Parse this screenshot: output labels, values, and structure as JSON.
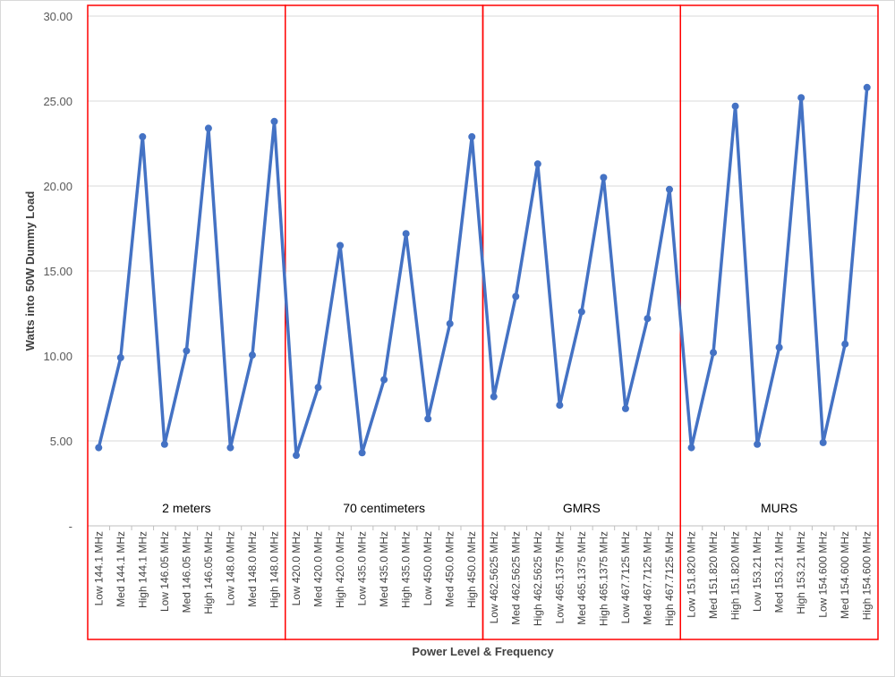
{
  "chart_data": {
    "type": "line",
    "title": "",
    "xlabel": "Power Level & Frequency",
    "ylabel": "Watts into 50W Dummy Load",
    "ylim": [
      0,
      30
    ],
    "yticks": [
      "-",
      "5.00",
      "10.00",
      "15.00",
      "20.00",
      "25.00",
      "30.00"
    ],
    "grid": true,
    "line_color": "#4472C4",
    "group_box_color": "#FF0000",
    "groups": [
      {
        "label": "2 meters",
        "count": 9
      },
      {
        "label": "70 centimeters",
        "count": 9
      },
      {
        "label": "GMRS",
        "count": 9
      },
      {
        "label": "MURS",
        "count": 9
      }
    ],
    "categories": [
      "Low 144.1 MHz",
      "Med 144.1 MHz",
      "High 144.1 MHz",
      "Low 146.05 MHz",
      "Med 146.05 MHz",
      "High 146.05 MHz",
      "Low 148.0 MHz",
      "Med 148.0 MHz",
      "High 148.0 MHz",
      "Low 420.0 MHz",
      "Med 420.0 MHz",
      "High 420.0 MHz",
      "Low 435.0 MHz",
      "Med 435.0 MHz",
      "High 435.0 MHz",
      "Low 450.0 MHz",
      "Med 450.0 MHz",
      "High 450.0 MHz",
      "Low 462.5625 MHz",
      "Med 462.5625 MHz",
      "High 462.5625 MHz",
      "Low 465.1375 MHz",
      "Med 465.1375 MHz",
      "High 465.1375 MHz",
      "Low 467.7125 MHz",
      "Med 467.7125 MHz",
      "High 467.7125 MHz",
      "Low 151.820 MHz",
      "Med 151.820 MHz",
      "High 151.820 MHz",
      "Low 153.21 MHz",
      "Med 153.21 MHz",
      "High 153.21 MHz",
      "Low 154.600 MHz",
      "Med 154.600 MHz",
      "High 154.600 MHz"
    ],
    "values": [
      4.6,
      9.9,
      22.9,
      4.8,
      10.3,
      23.4,
      4.6,
      10.05,
      23.8,
      4.15,
      8.15,
      16.5,
      4.3,
      8.6,
      17.2,
      6.3,
      11.9,
      22.9,
      7.6,
      13.5,
      21.3,
      7.1,
      12.6,
      20.5,
      6.9,
      12.2,
      19.8,
      4.6,
      10.2,
      24.7,
      4.8,
      10.5,
      25.2,
      4.9,
      10.7,
      25.8
    ]
  }
}
